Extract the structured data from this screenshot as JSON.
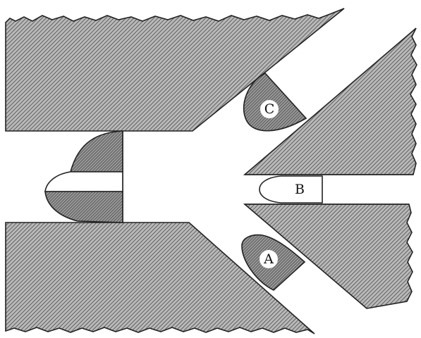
{
  "labels": {
    "a": "A",
    "b": "B",
    "c": "C"
  },
  "colors": {
    "background": "#ffffff",
    "hatch_fill": "#b9b9b9",
    "hatch_line": "#4a4a4a",
    "outline": "#222222",
    "label_backdrop": "#ffffff"
  }
}
